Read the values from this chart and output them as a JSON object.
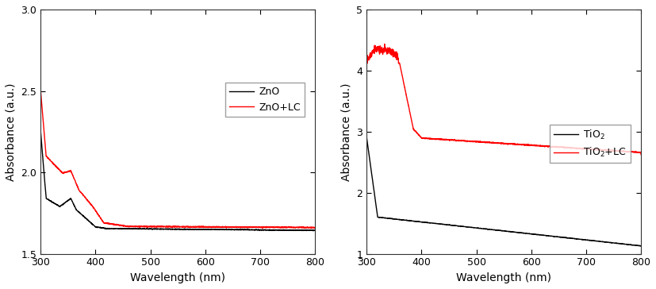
{
  "subplot1": {
    "xlabel": "Wavelength (nm)",
    "ylabel": "Absorbance (a.u.)",
    "xlim": [
      300,
      800
    ],
    "ylim": [
      1.5,
      3.0
    ],
    "yticks": [
      1.5,
      2.0,
      2.5,
      3.0
    ],
    "xticks": [
      300,
      400,
      500,
      600,
      700,
      800
    ],
    "legend": [
      "ZnO",
      "ZnO+LC"
    ],
    "line_colors": [
      "#000000",
      "#ff0000"
    ]
  },
  "subplot2": {
    "xlabel": "Wavelength (nm)",
    "ylabel": "Absorbance (a.u.)",
    "xlim": [
      300,
      800
    ],
    "ylim": [
      1,
      5
    ],
    "yticks": [
      1,
      2,
      3,
      4,
      5
    ],
    "xticks": [
      300,
      400,
      500,
      600,
      700,
      800
    ],
    "legend": [
      "TiO$_2$",
      "TiO$_2$+LC"
    ],
    "line_colors": [
      "#000000",
      "#ff0000"
    ]
  },
  "figure_bg": "#ffffff",
  "axes_bg": "#ffffff",
  "linewidth": 1.0,
  "figsize": [
    8.27,
    3.64
  ],
  "dpi": 100
}
